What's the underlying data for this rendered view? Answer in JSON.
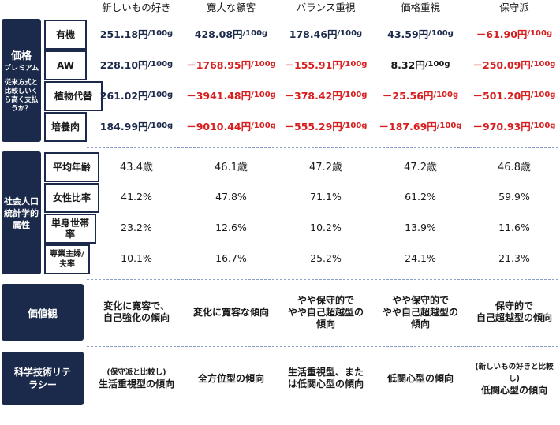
{
  "columns": [
    "新しいもの好き",
    "寛大な顧客",
    "バランス重視",
    "価格重視",
    "保守派"
  ],
  "sections": {
    "price": {
      "title": "価格",
      "subtitle": "プレミアム",
      "question": "従来方式と比較しいくら高く支払うか？"
    },
    "demo": {
      "title": "社会人口統計学的属性"
    },
    "values": {
      "title": "価値観"
    },
    "literacy": {
      "title": "科学技術リテラシー"
    }
  },
  "price_rows": [
    {
      "label": "有機",
      "cells": [
        {
          "value": "251.18円",
          "unit": "/100g",
          "sign": "pos"
        },
        {
          "value": "428.08円",
          "unit": "/100g",
          "sign": "pos"
        },
        {
          "value": "178.46円",
          "unit": "/100g",
          "sign": "pos"
        },
        {
          "value": "43.59円",
          "unit": "/100g",
          "sign": "pos"
        },
        {
          "value": "－61.90円",
          "unit": "/100g",
          "sign": "neg"
        }
      ]
    },
    {
      "label": "AW",
      "cells": [
        {
          "value": "228.10円",
          "unit": "/100g",
          "sign": "pos"
        },
        {
          "value": "－1768.95円",
          "unit": "/100g",
          "sign": "neg"
        },
        {
          "value": "－155.91円",
          "unit": "/100g",
          "sign": "neg"
        },
        {
          "value": "8.32円",
          "unit": "/100g",
          "sign": "neutral"
        },
        {
          "value": "－250.09円",
          "unit": "/100g",
          "sign": "neg"
        }
      ]
    },
    {
      "label": "植物代替",
      "cells": [
        {
          "value": "261.02円",
          "unit": "/100g",
          "sign": "pos"
        },
        {
          "value": "－3941.48円",
          "unit": "/100g",
          "sign": "neg"
        },
        {
          "value": "－378.42円",
          "unit": "/100g",
          "sign": "neg"
        },
        {
          "value": "－25.56円",
          "unit": "/100g",
          "sign": "neg"
        },
        {
          "value": "－501.20円",
          "unit": "/100g",
          "sign": "neg"
        }
      ]
    },
    {
      "label": "培養肉",
      "cells": [
        {
          "value": "184.99円",
          "unit": "/100g",
          "sign": "pos"
        },
        {
          "value": "－9010.44円",
          "unit": "/100g",
          "sign": "neg"
        },
        {
          "value": "－555.29円",
          "unit": "/100g",
          "sign": "neg"
        },
        {
          "value": "－187.69円",
          "unit": "/100g",
          "sign": "neg"
        },
        {
          "value": "－970.93円",
          "unit": "/100g",
          "sign": "neg"
        }
      ]
    }
  ],
  "demo_rows": [
    {
      "label": "平均年齢",
      "cells": [
        "43.4歳",
        "46.1歳",
        "47.2歳",
        "47.2歳",
        "46.8歳"
      ]
    },
    {
      "label": "女性比率",
      "cells": [
        "41.2%",
        "47.8%",
        "71.1%",
        "61.2%",
        "59.9%"
      ]
    },
    {
      "label": "単身世帯率",
      "cells": [
        "23.2%",
        "12.6%",
        "10.2%",
        "13.9%",
        "11.6%"
      ]
    },
    {
      "label": "専業主婦/夫率",
      "cells": [
        "10.1%",
        "16.7%",
        "25.2%",
        "24.1%",
        "21.3%"
      ]
    }
  ],
  "values_row": [
    {
      "line1": "変化に寛容で、",
      "line2": "自己強化の傾向",
      "line3": ""
    },
    {
      "line1": "変化に寛容な傾向",
      "line2": "",
      "line3": ""
    },
    {
      "line1": "やや保守的で",
      "line2": "やや自己超越型の",
      "line3": "傾向"
    },
    {
      "line1": "やや保守的で",
      "line2": "やや自己超越型の",
      "line3": "傾向"
    },
    {
      "line1": "保守的で",
      "line2": "自己超越型の傾向",
      "line3": ""
    }
  ],
  "literacy_row": [
    {
      "note": "(保守派と比較し)",
      "line1": "生活重視型の傾向",
      "line2": ""
    },
    {
      "note": "",
      "line1": "全方位型の傾向",
      "line2": ""
    },
    {
      "note": "",
      "line1": "生活重視型、また",
      "line2": "は低関心型の傾向"
    },
    {
      "note": "",
      "line1": "低関心型の傾向",
      "line2": ""
    },
    {
      "note": "(新しいもの好きと比較し)",
      "line1": "低関心型の傾向",
      "line2": ""
    }
  ],
  "colors": {
    "navy": "#1b2a4a",
    "negative": "#d81e1e",
    "positive": "#1b2a4a",
    "divider": "#8aa0c8"
  }
}
